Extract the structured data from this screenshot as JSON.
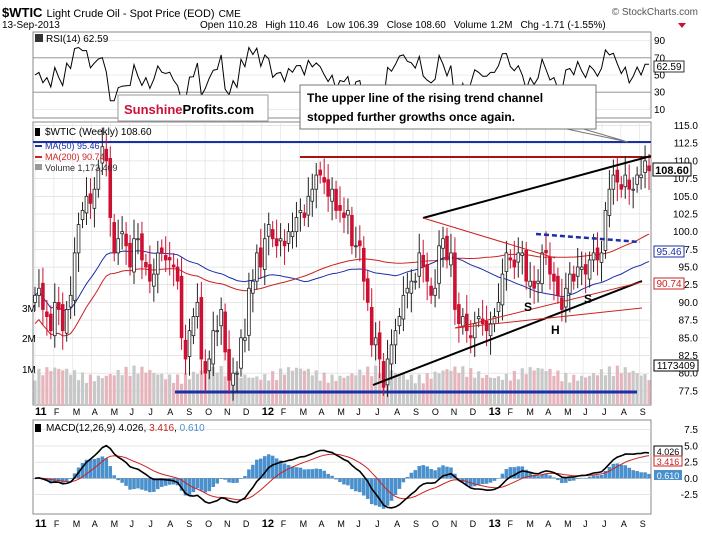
{
  "header": {
    "symbol": "$WTIC",
    "name": "Light Crude Oil - Spot Price (EOD)",
    "exchange": "CME",
    "date": "13-Sep-2013",
    "open_label": "Open",
    "open": "110.28",
    "high_label": "High",
    "high": "110.46",
    "low_label": "Low",
    "low": "106.39",
    "close_label": "Close",
    "close": "108.60",
    "volume_label": "Volume",
    "volume": "1.2M",
    "chg_label": "Chg",
    "chg": "-1.71 (-1.55%)",
    "credit": "© StockCharts.com"
  },
  "rsi": {
    "label": "RSI(14) 62.59",
    "ticks": [
      "90",
      "70",
      "50",
      "30",
      "10"
    ],
    "badge": "62.59"
  },
  "main": {
    "legend_title": "$WTIC (Weekly) 108.60",
    "legend_ma50": "MA(50) 95.46",
    "legend_ma200": "MA(200) 90.74",
    "legend_volume": "Volume 1,173,409",
    "logo_part1": "Sunshine",
    "logo_part2": "Profits.com",
    "annotation": "The upper line of the rising trend channel stopped further growths once again.",
    "annotation_line1": "The upper line of the rising trend channel",
    "annotation_line2": "stopped further growths once again.",
    "pattern_labels": [
      "S",
      "S",
      "H"
    ],
    "volume_ticks": [
      "3M",
      "2M",
      "1M"
    ],
    "badge_close": "108.60",
    "badge_ma50": "95.46",
    "badge_ma200": "90.74",
    "badge_volume": "1173409"
  },
  "macd": {
    "label_prefix": "MACD(12,26,9)",
    "value1": "4.026",
    "value2": "3.416",
    "value3": "0.610",
    "ticks": [
      "7.5",
      "5.0",
      "2.5",
      "0.0",
      "-2.5"
    ],
    "badge1": "4.026",
    "badge2": "3.416",
    "badge3": "0.610"
  },
  "colors": {
    "up": "#222222",
    "down": "#cc1133",
    "ma50": "#1a2fa8",
    "ma200": "#cc2222",
    "volume": "#c8c8c8",
    "volume_down": "#e8b4bc",
    "grid": "#d8d8d8",
    "macd_hist": "#4a90cc",
    "support": "#1a2fa8"
  },
  "chart_data": {
    "type": "candlestick",
    "title": "$WTIC Light Crude Oil - Spot Price (EOD) Weekly",
    "timeframe": "weekly",
    "x_axis_labels": [
      "11",
      "F",
      "M",
      "A",
      "M",
      "J",
      "J",
      "A",
      "S",
      "O",
      "N",
      "D",
      "12",
      "F",
      "M",
      "A",
      "M",
      "J",
      "J",
      "A",
      "S",
      "O",
      "N",
      "D",
      "13",
      "F",
      "M",
      "A",
      "M",
      "J",
      "J",
      "A",
      "S"
    ],
    "price_ticks": [
      115.0,
      112.5,
      110.0,
      107.5,
      105.0,
      102.5,
      100.0,
      97.5,
      95.0,
      92.5,
      90.0,
      87.5,
      85.0,
      82.5,
      80.0,
      77.5
    ],
    "price_range": [
      75.5,
      115.5
    ],
    "weekly_close": [
      91,
      92,
      89,
      88,
      86,
      90,
      89,
      86,
      89,
      91,
      97,
      101,
      103,
      105,
      104,
      106,
      109,
      112,
      110,
      102,
      97,
      99,
      100,
      98,
      95,
      99,
      99,
      96,
      95,
      93,
      94,
      97,
      97,
      96,
      96,
      95,
      93,
      85,
      82,
      86,
      88,
      90,
      82,
      80,
      82,
      86,
      86,
      89,
      83,
      79,
      80,
      80,
      85,
      85,
      92,
      93,
      97,
      95,
      99,
      101,
      99,
      98,
      99,
      98,
      100,
      100,
      102,
      103,
      102,
      105,
      106,
      108,
      108,
      107,
      105,
      106,
      103,
      103,
      102,
      103,
      98,
      98,
      98,
      93,
      90,
      84,
      85,
      82,
      78,
      82,
      84,
      86,
      88,
      91,
      92,
      93,
      93,
      97,
      95,
      93,
      91,
      92,
      98,
      99,
      96,
      97,
      89,
      87,
      88,
      86,
      85,
      87,
      88,
      87,
      86,
      87,
      88,
      90,
      94,
      97,
      96,
      95,
      97,
      97,
      93,
      93,
      92,
      93,
      97,
      97,
      94,
      93,
      91,
      89,
      92,
      94,
      93,
      95,
      95,
      94,
      96,
      97,
      96,
      97,
      103,
      106,
      108,
      107,
      106,
      108,
      106,
      106,
      108,
      108,
      110,
      108.6
    ],
    "ma50": {
      "name": "MA(50)",
      "last": 95.46
    },
    "ma200": {
      "name": "MA(200)",
      "last": 90.74
    },
    "levels": {
      "resistance": 110.5,
      "upper_horizontal": 114.0,
      "support": 76.5,
      "neckline": 97.5
    },
    "rsi_last": 62.59,
    "rsi_range": [
      0,
      100
    ],
    "volume_last": 1173409,
    "volume_ticks": [
      "1M",
      "2M",
      "3M"
    ],
    "macd": {
      "macd": 4.026,
      "signal": 3.416,
      "histogram": 0.61,
      "range": [
        -5.5,
        9.0
      ]
    },
    "annotations": [
      "The upper line of the rising trend channel stopped further growths once again.",
      "S",
      "H",
      "S"
    ]
  }
}
